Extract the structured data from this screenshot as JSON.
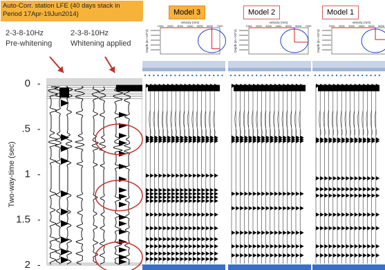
{
  "header": {
    "title_line1": "Auto-Corr. station LFE (40 days stack in",
    "title_line2": "Period 17Apr-19Jun2014)",
    "left_panel_freq": "2-3-8-10Hz",
    "left_panel_label": "Pre-whitening",
    "right_panel_freq": "2-3-8-10Hz",
    "right_panel_label": "Whitening applied"
  },
  "models": [
    {
      "label": "Model 3",
      "highlighted": true
    },
    {
      "label": "Model 2",
      "highlighted": false
    },
    {
      "label": "Model 1",
      "highlighted": false
    }
  ],
  "model_inset": {
    "xlabel": "velocity (m/s)",
    "ylabel": "Depth (m ×10^4)",
    "xticks": [
      "1000",
      "2000",
      "3000",
      "4000",
      "5000",
      "6000",
      "7000"
    ]
  },
  "colors": {
    "orange": "#f7b23a",
    "ellipse": "#c0302a",
    "arrow": "#c0302a",
    "model3_border": "#e08a2a",
    "model_border": "#d0605a",
    "trace": "#000000",
    "inset_curve": "#d02020",
    "inset_ellipse": "#2040c0"
  },
  "chart_data": {
    "type": "seismic-wiggle",
    "ylabel": "Two-way-time (sec)",
    "yticks": [
      {
        "value": 0,
        "label": "0"
      },
      {
        "value": 0.5,
        "label": ".5"
      },
      {
        "value": 1,
        "label": "1"
      },
      {
        "value": 1.5,
        "label": "1.5"
      },
      {
        "value": 2,
        "label": "2"
      }
    ],
    "ylim": [
      0,
      2
    ],
    "ellipse_times": [
      0.62,
      1.24,
      1.92
    ],
    "reflections": {
      "model3": [
        0.03,
        0.6,
        0.62,
        0.64,
        1.02,
        1.18,
        1.22,
        1.26,
        1.3,
        1.45,
        1.6,
        1.72,
        1.8,
        1.88,
        1.94
      ],
      "model2": [
        0.03,
        0.6,
        0.62,
        0.64,
        1.22,
        1.38,
        1.65,
        1.8,
        1.9
      ],
      "model1": [
        0.03,
        0.62,
        0.64,
        1.05,
        1.17,
        1.24,
        1.45,
        1.6,
        1.8,
        1.9
      ]
    },
    "inset_velocity_step": {
      "model3": [
        [
          1000,
          0
        ],
        [
          6200,
          0
        ],
        [
          6200,
          1
        ],
        [
          6200,
          1.6
        ],
        [
          7000,
          1.6
        ]
      ],
      "model2": [
        [
          1000,
          0
        ],
        [
          5600,
          0
        ],
        [
          5600,
          1.1
        ],
        [
          7000,
          1.1
        ]
      ],
      "model1": [
        [
          1000,
          0
        ],
        [
          5400,
          0
        ],
        [
          5400,
          0.9
        ],
        [
          6900,
          0.9
        ],
        [
          6900,
          1.7
        ]
      ]
    }
  }
}
